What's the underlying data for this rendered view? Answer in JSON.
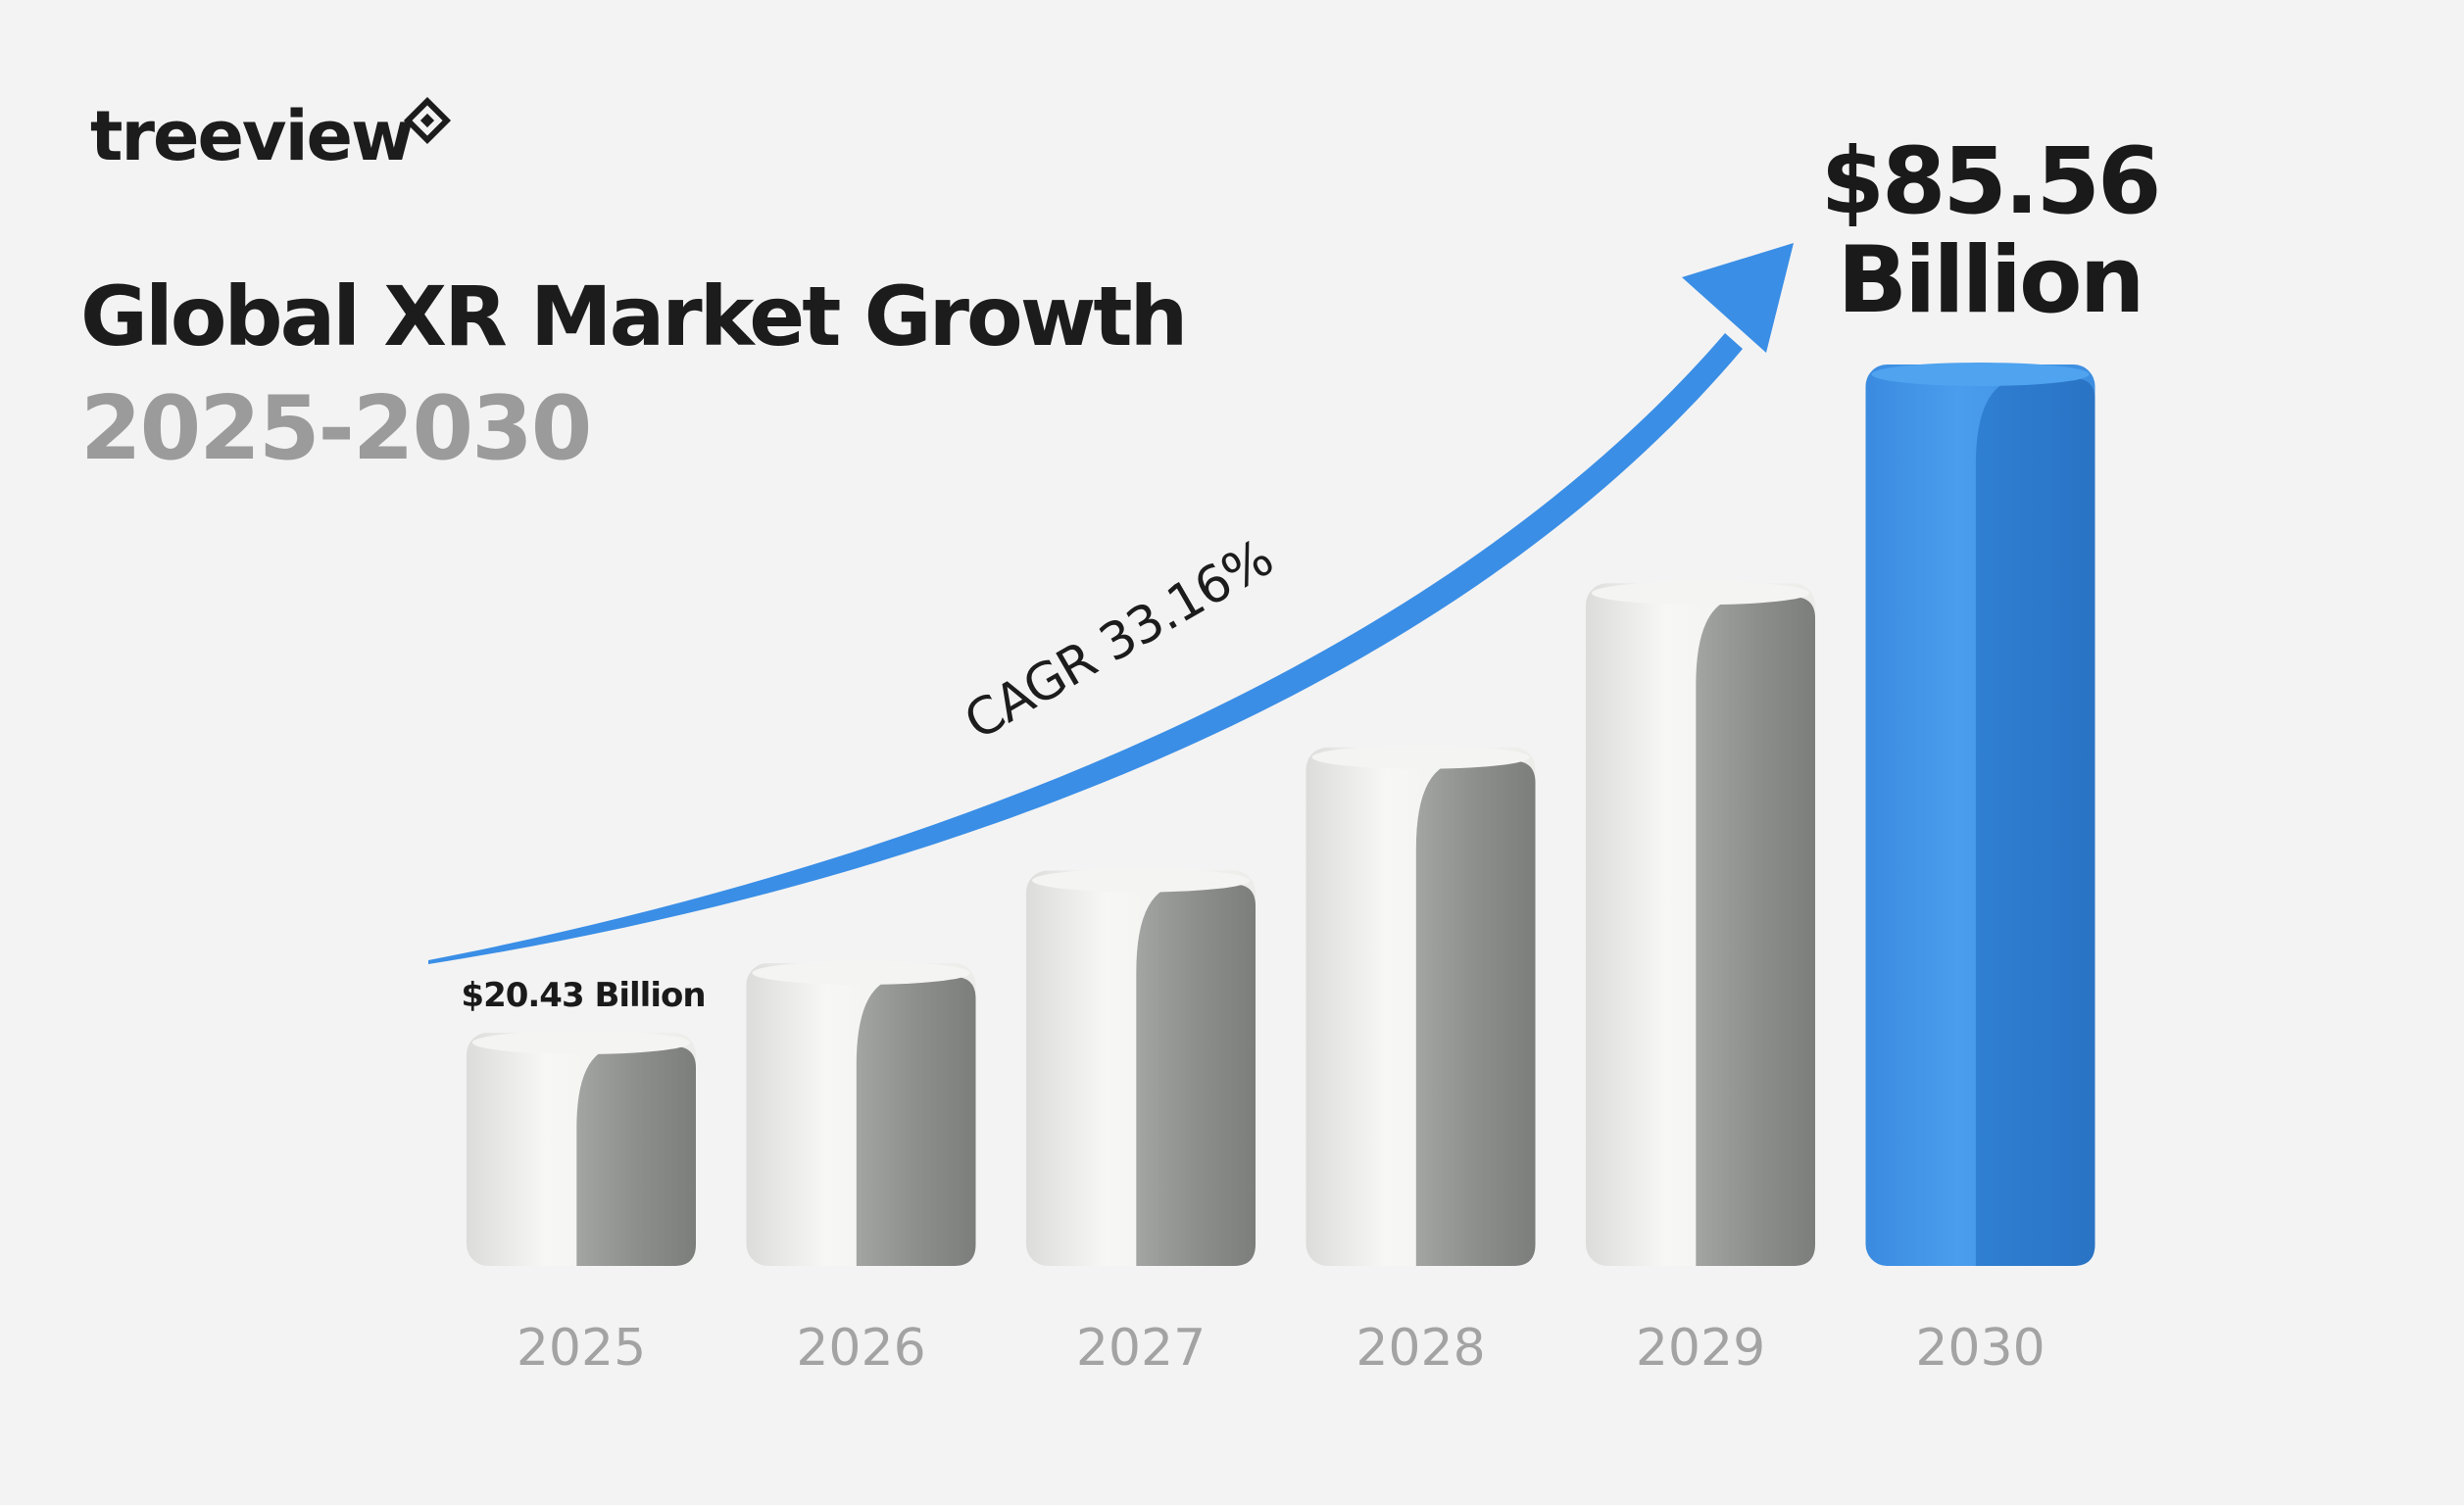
{
  "brand": {
    "name": "treeview",
    "logo_icon": "diamond-node-icon"
  },
  "header": {
    "title": "Global XR Market Growth",
    "subtitle": "2025-2030"
  },
  "colors": {
    "background": "#f3f3f3",
    "bar_light": "#efefed",
    "bar_shadow": "#8c8e8c",
    "bar_accent": "#3f93e3",
    "arrow": "#3a8ee6",
    "title": "#1c1c1c",
    "subtitle": "#9b9b9b",
    "year_labels": "#a3a3a3"
  },
  "annotations": {
    "cagr": "CAGR 33.16%",
    "start_value": "$20.43 Billion",
    "end_value_line1": "$85.56",
    "end_value_line2": "Billion"
  },
  "chart_data": {
    "type": "bar",
    "title": "Global XR Market Growth",
    "subtitle": "2025-2030",
    "categories": [
      "2025",
      "2026",
      "2027",
      "2028",
      "2029",
      "2030"
    ],
    "series": [
      {
        "values": [
          20.43,
          27.21,
          36.23,
          48.24,
          64.24,
          85.56
        ]
      }
    ],
    "unit": "Billion USD",
    "ylim": [
      0,
      90
    ],
    "highlight_category": "2030",
    "grid": false,
    "legend": "none",
    "annotations": [
      {
        "category": "2025",
        "text": "$20.43 Billion"
      },
      {
        "category": "2030",
        "text": "$85.56 Billion"
      },
      {
        "text": "CAGR 33.16%",
        "placement": "along trend arrow"
      }
    ]
  }
}
